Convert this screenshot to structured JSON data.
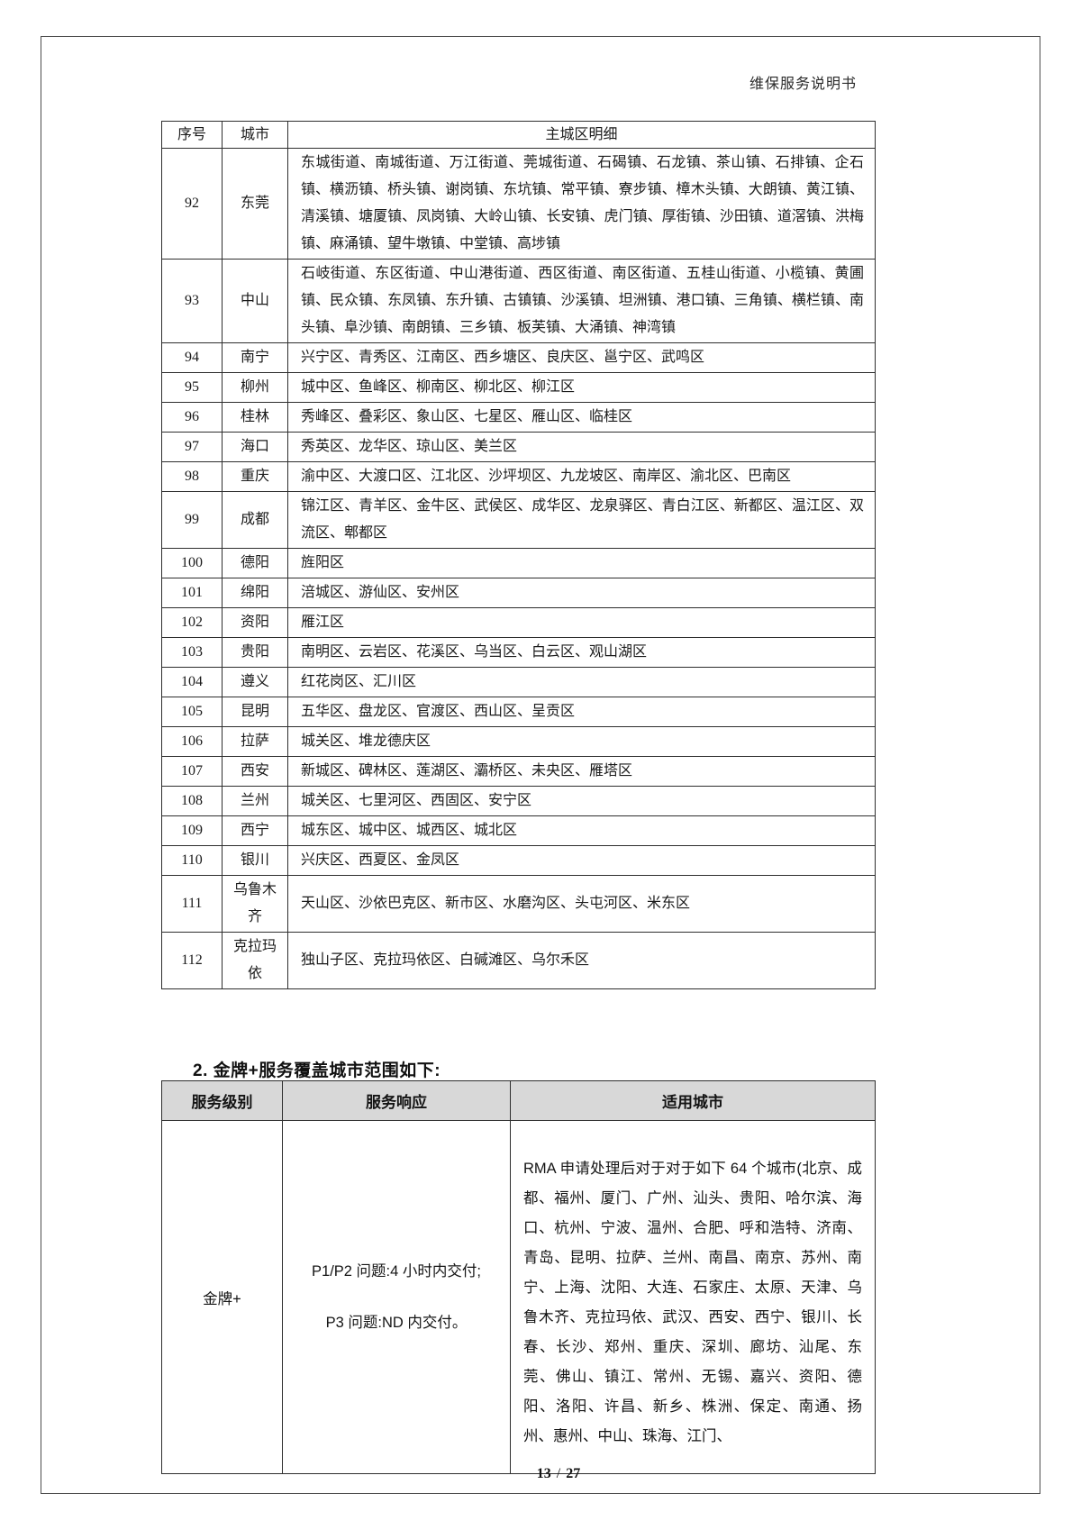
{
  "header": {
    "doc_title": "维保服务说明书"
  },
  "table1": {
    "columns": {
      "no": "序号",
      "city": "城市",
      "detail": "主城区明细"
    },
    "rows": [
      {
        "no": "92",
        "city": "东莞",
        "districts": "东城街道、南城街道、万江街道、莞城街道、石碣镇、石龙镇、茶山镇、石排镇、企石镇、横沥镇、桥头镇、谢岗镇、东坑镇、常平镇、寮步镇、樟木头镇、大朗镇、黄江镇、清溪镇、塘厦镇、凤岗镇、大岭山镇、长安镇、虎门镇、厚街镇、沙田镇、道滘镇、洪梅镇、麻涌镇、望牛墩镇、中堂镇、高埗镇"
      },
      {
        "no": "93",
        "city": "中山",
        "districts": "石岐街道、东区街道、中山港街道、西区街道、南区街道、五桂山街道、小榄镇、黄圃镇、民众镇、东凤镇、东升镇、古镇镇、沙溪镇、坦洲镇、港口镇、三角镇、横栏镇、南头镇、阜沙镇、南朗镇、三乡镇、板芙镇、大涌镇、神湾镇"
      },
      {
        "no": "94",
        "city": "南宁",
        "districts": "兴宁区、青秀区、江南区、西乡塘区、良庆区、邕宁区、武鸣区"
      },
      {
        "no": "95",
        "city": "柳州",
        "districts": "城中区、鱼峰区、柳南区、柳北区、柳江区"
      },
      {
        "no": "96",
        "city": "桂林",
        "districts": "秀峰区、叠彩区、象山区、七星区、雁山区、临桂区"
      },
      {
        "no": "97",
        "city": "海口",
        "districts": "秀英区、龙华区、琼山区、美兰区"
      },
      {
        "no": "98",
        "city": "重庆",
        "districts": "渝中区、大渡口区、江北区、沙坪坝区、九龙坡区、南岸区、渝北区、巴南区"
      },
      {
        "no": "99",
        "city": "成都",
        "districts": "锦江区、青羊区、金牛区、武侯区、成华区、龙泉驿区、青白江区、新都区、温江区、双流区、郫都区"
      },
      {
        "no": "100",
        "city": "德阳",
        "districts": "旌阳区"
      },
      {
        "no": "101",
        "city": "绵阳",
        "districts": "涪城区、游仙区、安州区"
      },
      {
        "no": "102",
        "city": "资阳",
        "districts": "雁江区"
      },
      {
        "no": "103",
        "city": "贵阳",
        "districts": "南明区、云岩区、花溪区、乌当区、白云区、观山湖区"
      },
      {
        "no": "104",
        "city": "遵义",
        "districts": "红花岗区、汇川区"
      },
      {
        "no": "105",
        "city": "昆明",
        "districts": "五华区、盘龙区、官渡区、西山区、呈贡区"
      },
      {
        "no": "106",
        "city": "拉萨",
        "districts": "城关区、堆龙德庆区"
      },
      {
        "no": "107",
        "city": "西安",
        "districts": "新城区、碑林区、莲湖区、灞桥区、未央区、雁塔区"
      },
      {
        "no": "108",
        "city": "兰州",
        "districts": "城关区、七里河区、西固区、安宁区"
      },
      {
        "no": "109",
        "city": "西宁",
        "districts": "城东区、城中区、城西区、城北区"
      },
      {
        "no": "110",
        "city": "银川",
        "districts": "兴庆区、西夏区、金凤区"
      },
      {
        "no": "111",
        "city": "乌鲁木齐",
        "districts": "天山区、沙依巴克区、新市区、水磨沟区、头屯河区、米东区"
      },
      {
        "no": "112",
        "city": "克拉玛依",
        "districts": "独山子区、克拉玛依区、白碱滩区、乌尔禾区"
      }
    ]
  },
  "section": {
    "heading": "2. 金牌+服务覆盖城市范围如下:"
  },
  "table2": {
    "columns": {
      "level": "服务级别",
      "response": "服务响应",
      "cities": "适用城市"
    },
    "row": {
      "level": "金牌+",
      "response_p1": "P1/P2 问题:4 小时内交付;",
      "response_p2": "P3 问题:ND 内交付。",
      "cities": "RMA 申请处理后对于对于如下 64 个城市(北京、成都、福州、厦门、广州、汕头、贵阳、哈尔滨、海口、杭州、宁波、温州、合肥、呼和浩特、济南、青岛、昆明、拉萨、兰州、南昌、南京、苏州、南宁、上海、沈阳、大连、石家庄、太原、天津、乌鲁木齐、克拉玛依、武汉、西安、西宁、银川、长春、长沙、郑州、重庆、深圳、廊坊、汕尾、东莞、佛山、镇江、常州、无锡、嘉兴、资阳、德阳、洛阳、许昌、新乡、株洲、保定、南通、扬州、惠州、中山、珠海、江门、"
    }
  },
  "footer": {
    "page": "13",
    "separator": "/",
    "total": "27"
  }
}
